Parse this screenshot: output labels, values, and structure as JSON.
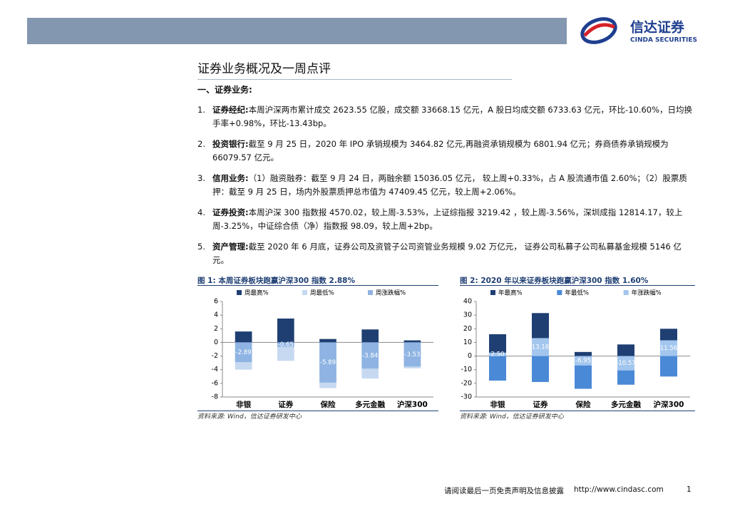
{
  "header": {
    "logo_cn": "信达证券",
    "logo_en": "CINDA SECURITIES"
  },
  "title": "证券业务概况及一周点评",
  "section": "一、证券业务:",
  "items": [
    {
      "num": "1.",
      "label": "证券经纪:",
      "text": "本周沪深两市累计成交 2623.55 亿股，成交额 33668.15 亿元，A 股日均成交额 6733.63 亿元，环比-10.60%，日均换手率+0.98%，环比-13.43bp。"
    },
    {
      "num": "2.",
      "label": "投资银行:",
      "text": "截至 9 月 25 日，2020 年 IPO 承销规模为 3464.82 亿元,再融资承销规模为 6801.94 亿元；券商债券承销规模为 66079.57 亿元。"
    },
    {
      "num": "3.",
      "label": "信用业务:",
      "text": "（1）融资融券：截至 9 月 24 日，两融余额 15036.05 亿元， 较上周+0.33%，占 A 股流通市值 2.60%；（2）股票质押：截至 9 月 25 日，场内外股票质押总市值为 47409.45 亿元，较上周+2.06%。"
    },
    {
      "num": "4.",
      "label": "证券投资:",
      "text": "本周沪深 300 指数报 4570.02，较上周-3.53%，上证综指报 3219.42 ，较上周-3.56%，深圳成指 12814.17，较上周-3.25%，中证综合债（净）指数报 98.09，较上周+2bp。"
    },
    {
      "num": "5.",
      "label": "资产管理:",
      "text": "截至 2020 年 6 月底，证券公司及资管子公司资管业务规模 9.02 万亿元， 证券公司私募子公司私募基金规模 5146 亿元。"
    }
  ],
  "chart_data": [
    {
      "type": "bar",
      "title": "图 1: 本周证券板块跑赢沪深300 指数 2.88%",
      "categories": [
        "非银",
        "证券",
        "保险",
        "多元金融",
        "沪深300"
      ],
      "series": [
        {
          "name": "周最高%",
          "color": "#1f3f73",
          "values": [
            1.6,
            3.5,
            0.5,
            1.9,
            0.3
          ]
        },
        {
          "name": "周最低%",
          "color": "#c6d9f0",
          "values": [
            -4.0,
            -2.7,
            -6.7,
            -5.3,
            -3.8
          ]
        },
        {
          "name": "周涨跌幅%",
          "color": "#8fb4e3",
          "values": [
            -2.89,
            -0.65,
            -5.89,
            -3.84,
            -3.53
          ]
        }
      ],
      "ylim": [
        -8,
        6
      ],
      "yticks": [
        -8,
        -6,
        -4,
        -2,
        0,
        2,
        4,
        6
      ],
      "source": "资料来源: Wind，信达证券研发中心"
    },
    {
      "type": "bar",
      "title": "图 2: 2020 年以来证券板块跑赢沪深300 指数 1.60%",
      "categories": [
        "非银",
        "证券",
        "保险",
        "多元金融",
        "沪深300"
      ],
      "series": [
        {
          "name": "年最高%",
          "color": "#1f3f73",
          "values": [
            16,
            31.5,
            3,
            8.5,
            20
          ]
        },
        {
          "name": "年最低%",
          "color": "#4a89d6",
          "values": [
            -18,
            -19,
            -24,
            -21,
            -15
          ]
        },
        {
          "name": "年涨跌幅%",
          "color": "#a3c6ee",
          "values": [
            2.5,
            13.16,
            -6.95,
            -10.57,
            11.56
          ],
          "value_labels": [
            "2.50",
            "13.16",
            "-6.95",
            "-10.57",
            "11.56"
          ]
        }
      ],
      "ylim": [
        -30,
        40
      ],
      "yticks": [
        -30,
        -20,
        -10,
        0,
        10,
        20,
        30,
        40
      ],
      "source": "资料来源: Wind，信达证券研发中心"
    }
  ],
  "footer": {
    "disclaimer": "请阅读最后一页免责声明及信息披露",
    "url": "http://www.cindasc.com",
    "page": "1"
  }
}
